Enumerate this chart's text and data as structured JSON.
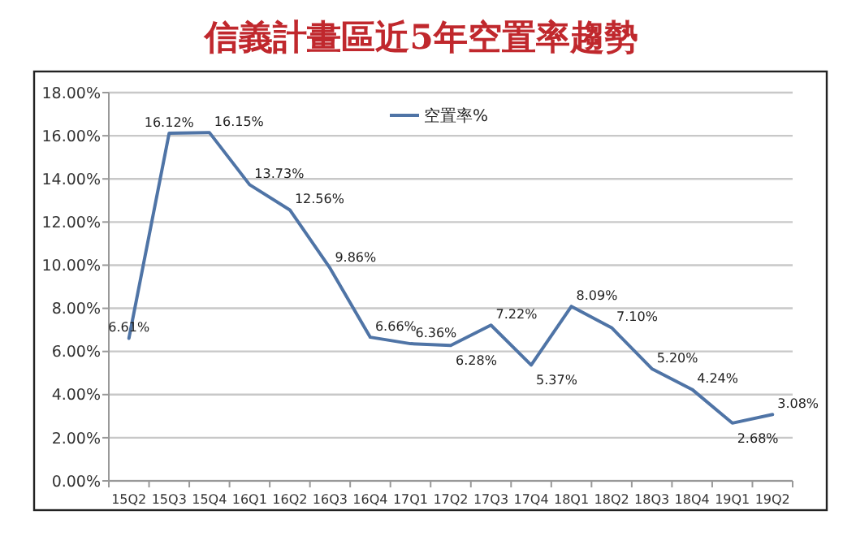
{
  "chart_data": {
    "type": "line",
    "title": "信義計畫區近5年空置率趨勢",
    "categories": [
      "15Q2",
      "15Q3",
      "15Q4",
      "16Q1",
      "16Q2",
      "16Q3",
      "16Q4",
      "17Q1",
      "17Q2",
      "17Q3",
      "17Q4",
      "18Q1",
      "18Q2",
      "18Q3",
      "18Q4",
      "19Q1",
      "19Q2"
    ],
    "series": [
      {
        "name": "空置率%",
        "color": "#4f74a6",
        "values": [
          6.61,
          16.12,
          16.15,
          13.73,
          12.56,
          9.86,
          6.66,
          6.36,
          6.28,
          7.22,
          5.37,
          8.09,
          7.1,
          5.2,
          4.24,
          2.68,
          3.08
        ],
        "value_labels": [
          "6.61%",
          "16.12%",
          "16.15%",
          "13.73%",
          "12.56%",
          "9.86%",
          "6.66%",
          "6.36%",
          "6.28%",
          "7.22%",
          "5.37%",
          "8.09%",
          "7.10%",
          "5.20%",
          "4.24%",
          "2.68%",
          "3.08%"
        ]
      }
    ],
    "ylim": [
      0,
      18
    ],
    "yticks": [
      {
        "value": 0,
        "label": "0.00%"
      },
      {
        "value": 2,
        "label": "2.00%"
      },
      {
        "value": 4,
        "label": "4.00%"
      },
      {
        "value": 6,
        "label": "6.00%"
      },
      {
        "value": 8,
        "label": "8.00%"
      },
      {
        "value": 10,
        "label": "10.00%"
      },
      {
        "value": 12,
        "label": "12.00%"
      },
      {
        "value": 14,
        "label": "14.00%"
      },
      {
        "value": 16,
        "label": "16.00%"
      },
      {
        "value": 18,
        "label": "18.00%"
      }
    ],
    "grid": "y",
    "legend": "top",
    "marker": "none",
    "line_style": "solid"
  }
}
